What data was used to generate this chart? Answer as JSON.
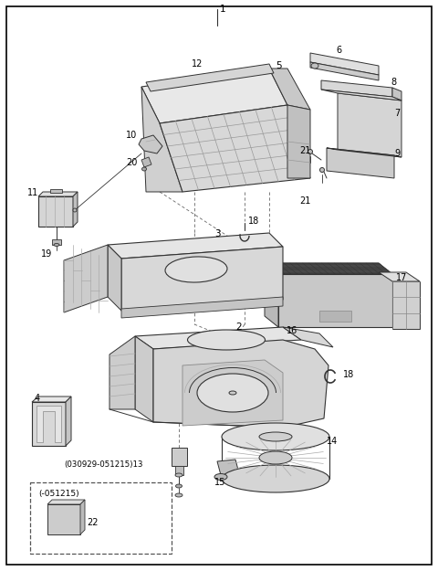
{
  "bg_color": "#ffffff",
  "border_color": "#000000",
  "line_color": "#333333",
  "gray_light": "#d8d8d8",
  "gray_mid": "#b0b0b0",
  "gray_dark": "#888888",
  "fig_width": 4.8,
  "fig_height": 6.25,
  "dpi": 100,
  "label_030929": "(030929-051215)13",
  "label_051215": "(-051215)"
}
